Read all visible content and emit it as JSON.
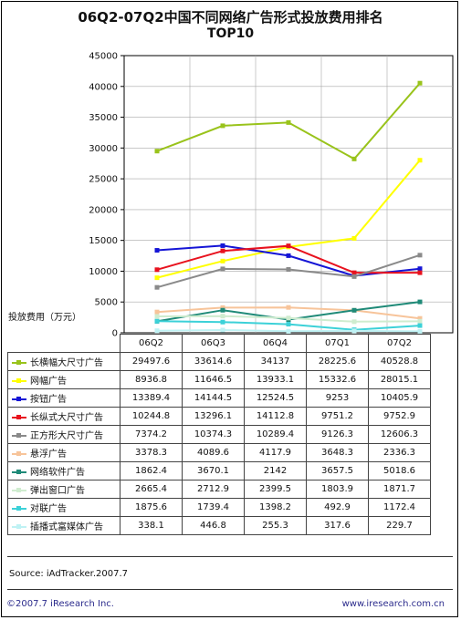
{
  "header": {
    "title": "06Q2-07Q2中国不同网络广告形式投放费用排名",
    "subtitle": "TOP10"
  },
  "chart_data": {
    "type": "line",
    "title": "06Q2-07Q2中国不同网络广告形式投放费用排名",
    "subtitle": "TOP10",
    "ylabel": "投放费用（万元）",
    "ylim": [
      0,
      45000
    ],
    "yticks": [
      "0",
      "5000",
      "10000",
      "15000",
      "20000",
      "25000",
      "30000",
      "35000",
      "40000",
      "45000"
    ],
    "categories": [
      "06Q2",
      "06Q3",
      "06Q4",
      "07Q1",
      "07Q2"
    ],
    "grid": true,
    "legend": "table-below",
    "series": [
      {
        "name": "长横幅大尺寸广告",
        "color": "#99c31b",
        "values": [
          "29497.6",
          "33614.6",
          "34137",
          "28225.6",
          "40528.8"
        ]
      },
      {
        "name": "网幅广告",
        "color": "#ffff00",
        "values": [
          "8936.8",
          "11646.5",
          "13933.1",
          "15332.6",
          "28015.1"
        ]
      },
      {
        "name": "按钮广告",
        "color": "#1515d6",
        "values": [
          "13389.4",
          "14144.5",
          "12524.5",
          "9253",
          "10405.9"
        ]
      },
      {
        "name": "长纵式大尺寸广告",
        "color": "#e8121e",
        "values": [
          "10244.8",
          "13296.1",
          "14112.8",
          "9751.2",
          "9752.9"
        ]
      },
      {
        "name": "正方形大尺寸广告",
        "color": "#8a8a8a",
        "values": [
          "7374.2",
          "10374.3",
          "10289.4",
          "9126.3",
          "12606.3"
        ]
      },
      {
        "name": "悬浮广告",
        "color": "#f7c49a",
        "values": [
          "3378.3",
          "4089.6",
          "4117.9",
          "3648.3",
          "2336.3"
        ]
      },
      {
        "name": "网络软件广告",
        "color": "#1f8a78",
        "values": [
          "1862.4",
          "3670.1",
          "2142",
          "3657.5",
          "5018.6"
        ]
      },
      {
        "name": "弹出窗口广告",
        "color": "#cfeccf",
        "values": [
          "2665.4",
          "2712.9",
          "2399.5",
          "1803.9",
          "1871.7"
        ]
      },
      {
        "name": "对联广告",
        "color": "#3cd1d8",
        "values": [
          "1875.6",
          "1739.4",
          "1398.2",
          "492.9",
          "1172.4"
        ]
      },
      {
        "name": "插播式富媒体广告",
        "color": "#bff2f4",
        "values": [
          "338.1",
          "446.8",
          "255.3",
          "317.6",
          "229.7"
        ]
      }
    ]
  },
  "footer": {
    "source": "Source: iAdTracker.2007.7",
    "copyright": "©2007.7 iResearch Inc.",
    "website": "www.iresearch.com.cn"
  }
}
